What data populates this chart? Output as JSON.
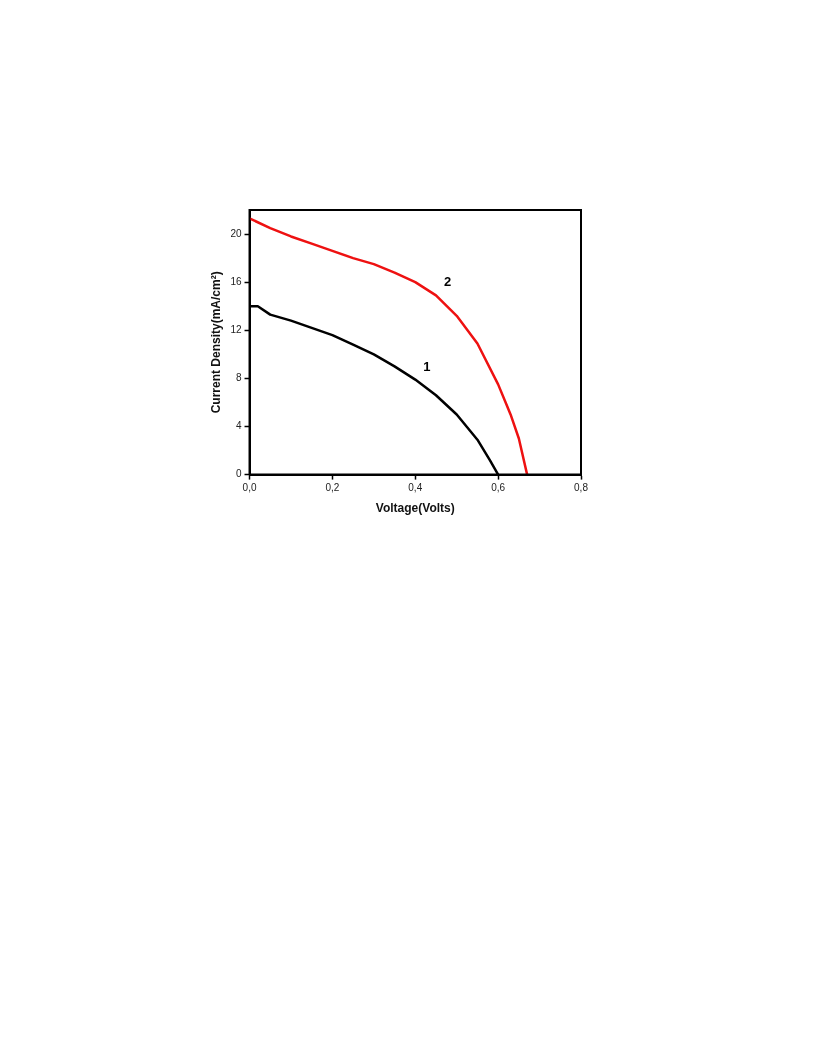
{
  "chart_data": {
    "type": "line",
    "xlabel": "Voltage(Volts)",
    "ylabel": "Current Density(mA/cm²)",
    "xlim": [
      0,
      0.8
    ],
    "xticks": [
      {
        "value": 0,
        "label": "0,0"
      },
      {
        "value": 0.2,
        "label": "0,2"
      },
      {
        "value": 0.4,
        "label": "0,4"
      },
      {
        "value": 0.6,
        "label": "0,6"
      },
      {
        "value": 0.8,
        "label": "0,8"
      }
    ],
    "ylim": [
      0,
      22
    ],
    "yticks": [
      0,
      4,
      8,
      12,
      16,
      20
    ],
    "grid": false,
    "legend": false,
    "marker": "none",
    "line_style": "solid",
    "series": [
      {
        "name": "1",
        "color": "#000000",
        "x": [
          0,
          0.02,
          0.05,
          0.1,
          0.15,
          0.2,
          0.25,
          0.3,
          0.35,
          0.4,
          0.45,
          0.5,
          0.55,
          0.58,
          0.6
        ],
        "values": [
          14.0,
          14.0,
          13.3,
          12.8,
          12.2,
          11.6,
          10.8,
          10.0,
          9.0,
          7.9,
          6.6,
          5.0,
          2.9,
          1.2,
          0
        ]
      },
      {
        "name": "2",
        "color": "#ee1111",
        "x": [
          0,
          0.05,
          0.1,
          0.15,
          0.2,
          0.25,
          0.3,
          0.35,
          0.4,
          0.45,
          0.5,
          0.55,
          0.6,
          0.63,
          0.65,
          0.67
        ],
        "values": [
          21.3,
          20.5,
          19.8,
          19.2,
          18.6,
          18.0,
          17.5,
          16.8,
          16.0,
          14.9,
          13.2,
          10.9,
          7.5,
          5.0,
          3.0,
          0
        ]
      }
    ]
  }
}
